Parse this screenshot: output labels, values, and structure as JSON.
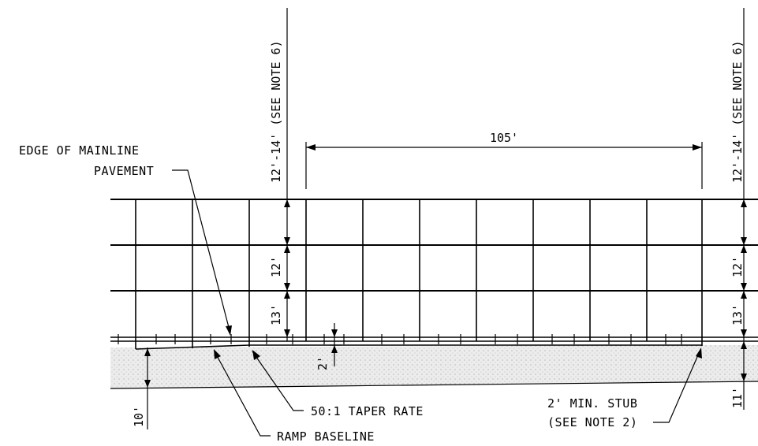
{
  "labels": {
    "edge_line1": "EDGE OF MAINLINE",
    "edge_line2": "PAVEMENT",
    "taper_rate": "50:1 TAPER RATE",
    "ramp_baseline": "RAMP BASELINE",
    "stub_line1": "2' MIN. STUB",
    "stub_line2": "(SEE NOTE 2)"
  },
  "dimensions": {
    "top_span": "105'",
    "left_top": "12'-14' (SEE NOTE 6)",
    "right_top": "12'-14' (SEE NOTE 6)",
    "left_12": "12'",
    "left_13": "13'",
    "right_12": "12'",
    "right_13": "13'",
    "right_11": "11'",
    "offset_2": "2'",
    "left_10": "10'"
  },
  "colors": {
    "line": "#000000",
    "shoulder_fill": "#e6e6e6"
  }
}
